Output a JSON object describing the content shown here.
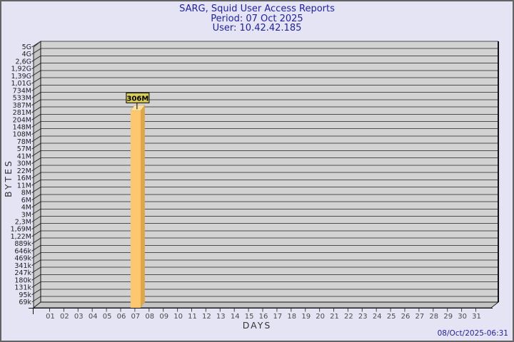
{
  "title": {
    "line1": "SARG, Squid User Access Reports",
    "line2": "Period: 07 Oct 2025",
    "line3": "User: 10.42.42.185"
  },
  "footer": {
    "generated": "08/Oct/2025-06:31"
  },
  "chart_data": {
    "type": "bar",
    "title": "SARG, Squid User Access Reports",
    "subtitle": "Period: 07 Oct 2025 — User: 10.42.42.185",
    "xlabel": "DAYS",
    "ylabel": "BYTES",
    "scale": "log",
    "grid": "on",
    "y_tick_labels": [
      "5G",
      "4G",
      "2,6G",
      "1,92G",
      "1,39G",
      "1,01G",
      "734M",
      "533M",
      "387M",
      "281M",
      "204M",
      "148M",
      "108M",
      "78M",
      "57M",
      "41M",
      "30M",
      "22M",
      "16M",
      "11M",
      "8M",
      "6M",
      "4M",
      "3M",
      "2,3M",
      "1,69M",
      "1,22M",
      "889k",
      "646k",
      "469k",
      "341k",
      "247k",
      "180k",
      "131k",
      "95k",
      "69k"
    ],
    "x_tick_labels": [
      "01",
      "02",
      "03",
      "04",
      "05",
      "06",
      "07",
      "08",
      "09",
      "10",
      "11",
      "12",
      "13",
      "14",
      "15",
      "16",
      "17",
      "18",
      "19",
      "20",
      "21",
      "22",
      "23",
      "24",
      "25",
      "26",
      "27",
      "28",
      "29",
      "30",
      "31"
    ],
    "bars": [
      {
        "day": "07",
        "value_label": "306M"
      }
    ],
    "colors": {
      "background": "#e4e4f4",
      "title_text": "#22229b",
      "plot_bg": "#d2d2d2",
      "wall_bg": "#c4c4c4",
      "grid": "#4d4d4d",
      "axis_text": "#4a4a4a",
      "bar_front": "#fdc770",
      "bar_side": "#dea64a",
      "bar_top": "#fce0a0",
      "label_box_bg": "#d8cc58",
      "label_box_border": "#000000"
    }
  }
}
